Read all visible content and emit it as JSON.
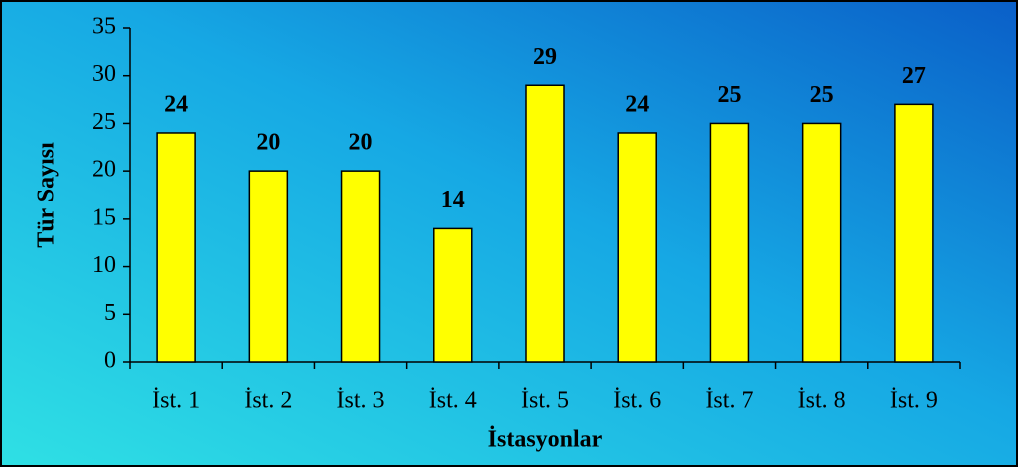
{
  "chart_data": {
    "type": "bar",
    "x_label": "İstasyonlar",
    "y_label": "Tür Sayısı",
    "categories": [
      "İst. 1",
      "İst. 2",
      "İst. 3",
      "İst. 4",
      "İst. 5",
      "İst. 6",
      "İst. 7",
      "İst. 8",
      "İst. 9"
    ],
    "values": [
      24,
      20,
      20,
      14,
      29,
      24,
      25,
      25,
      27
    ],
    "color": "#ffff00",
    "ylim": [
      0,
      35
    ],
    "yticks": [
      0,
      5,
      10,
      15,
      20,
      25,
      30,
      35
    ],
    "grid": false
  }
}
